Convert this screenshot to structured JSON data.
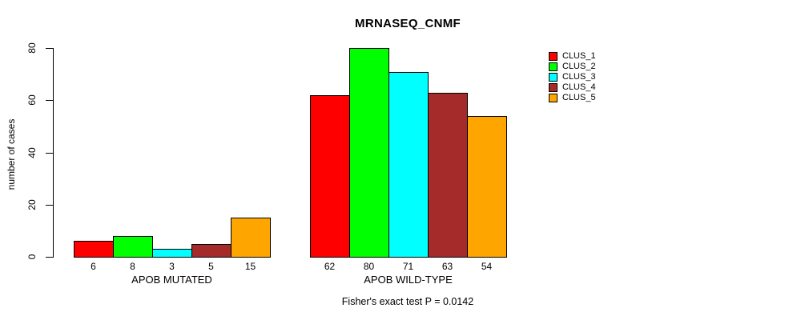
{
  "chart_data": {
    "type": "bar",
    "title": "MRNASEQ_CNMF",
    "ylabel": "number of cases",
    "xlabel": "",
    "footnote": "Fisher's exact test P = 0.0142",
    "ylim": [
      0,
      80
    ],
    "yticks": [
      0,
      20,
      40,
      60,
      80
    ],
    "grid": false,
    "legend_position": "upper-right",
    "categories": [
      "APOB MUTATED",
      "APOB WILD-TYPE"
    ],
    "series": [
      {
        "name": "CLUS_1",
        "color": "#ff0000",
        "values": [
          6,
          62
        ]
      },
      {
        "name": "CLUS_2",
        "color": "#00ff00",
        "values": [
          8,
          80
        ]
      },
      {
        "name": "CLUS_3",
        "color": "#00ffff",
        "values": [
          3,
          71
        ]
      },
      {
        "name": "CLUS_4",
        "color": "#a52a2a",
        "values": [
          5,
          63
        ]
      },
      {
        "name": "CLUS_5",
        "color": "#ffa500",
        "values": [
          15,
          54
        ]
      }
    ],
    "bar_value_labels": true,
    "colors": {
      "background": "#ffffff",
      "axis": "#000000",
      "text": "#000000"
    }
  }
}
